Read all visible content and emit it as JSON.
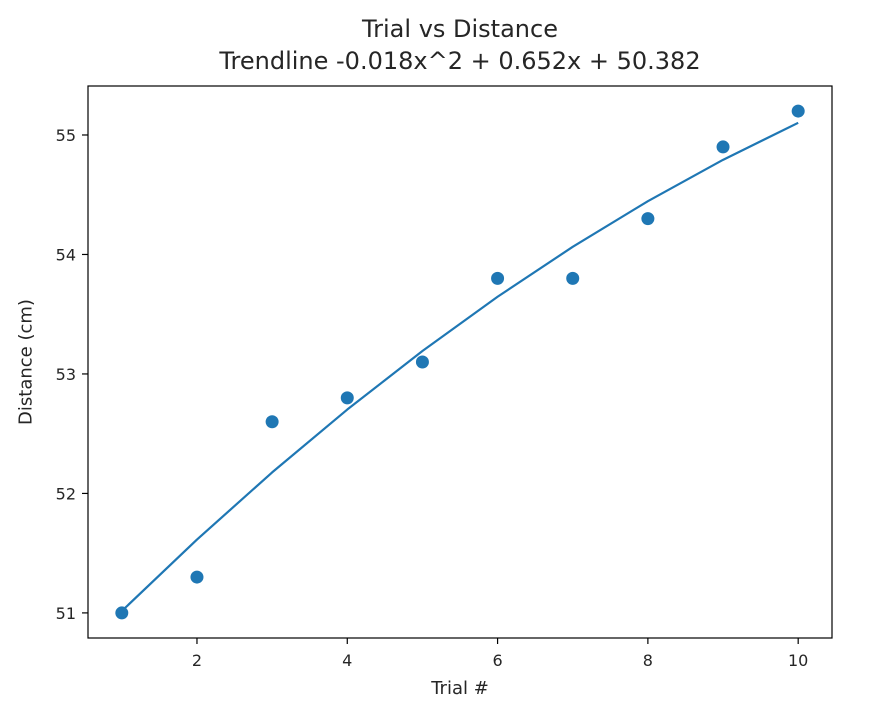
{
  "chart_data": {
    "type": "scatter",
    "title": "Trial vs Distance",
    "subtitle": "Trendline -0.018x^2 + 0.652x + 50.382",
    "xlabel": "Trial #",
    "ylabel": "Distance (cm)",
    "xlim": [
      0.55,
      10.45
    ],
    "ylim": [
      50.79,
      55.41
    ],
    "x_ticks": [
      2,
      4,
      6,
      8,
      10
    ],
    "y_ticks": [
      51,
      52,
      53,
      54,
      55
    ],
    "grid": false,
    "series": [
      {
        "type": "scatter",
        "x": [
          1,
          2,
          3,
          4,
          5,
          6,
          7,
          8,
          9,
          10
        ],
        "y": [
          51.0,
          51.3,
          52.6,
          52.8,
          53.1,
          53.8,
          53.8,
          54.3,
          54.9,
          55.2
        ]
      },
      {
        "type": "line",
        "x": [
          1,
          2,
          3,
          4,
          5,
          6,
          7,
          8,
          9,
          10
        ],
        "y": [
          51.016,
          51.614,
          52.176,
          52.702,
          53.192,
          53.646,
          54.064,
          54.446,
          54.792,
          55.102
        ]
      }
    ],
    "colors": {
      "series": "#1f77b4",
      "axes": "#000000",
      "text": "#262626"
    }
  }
}
